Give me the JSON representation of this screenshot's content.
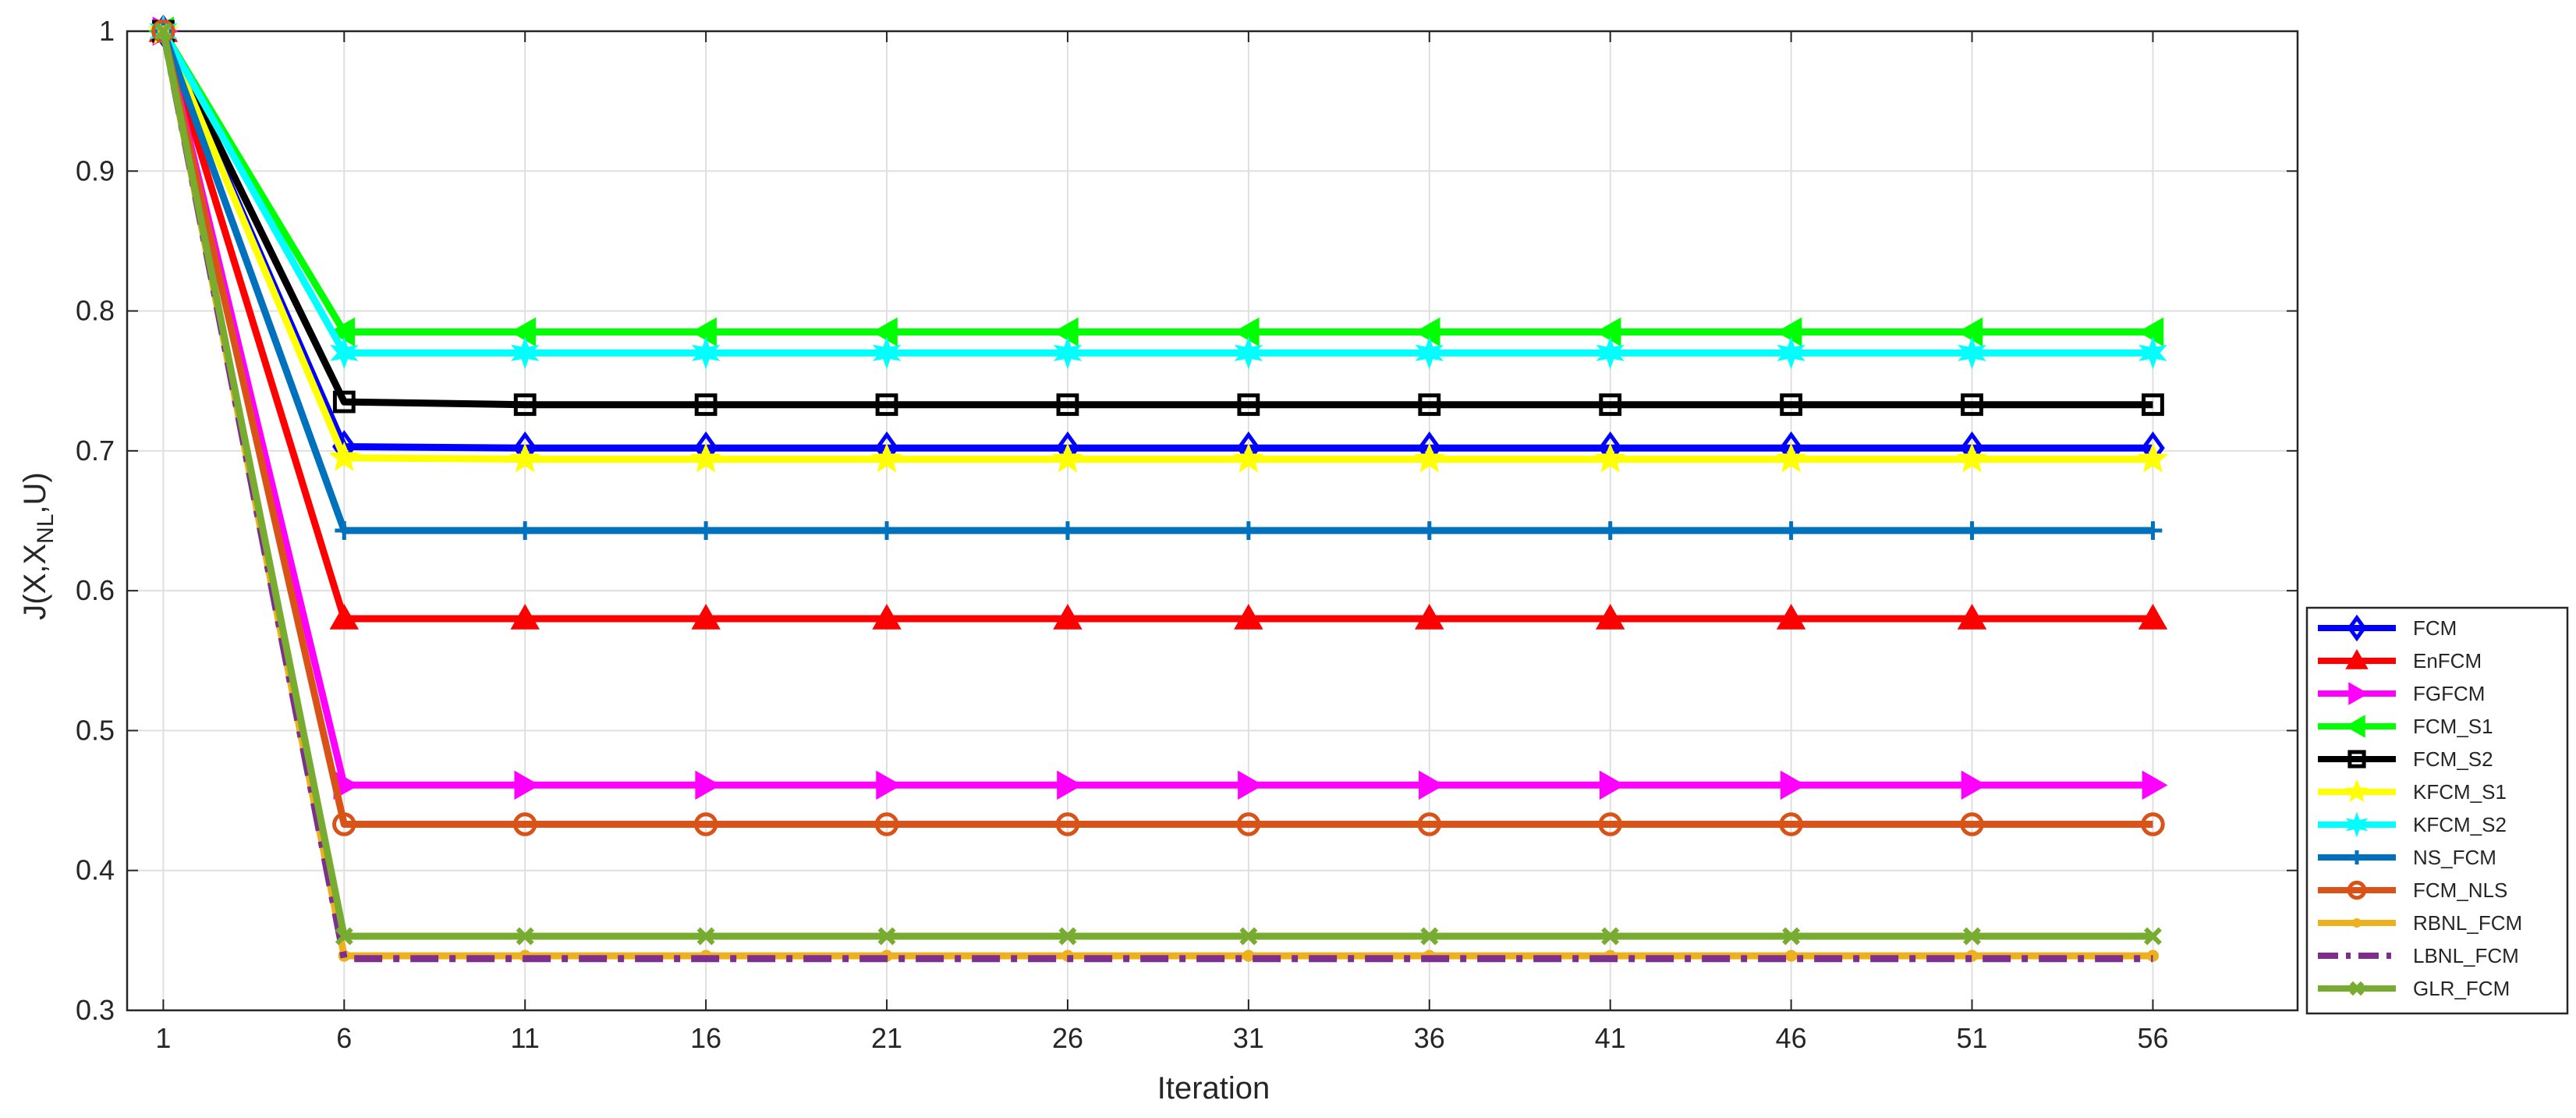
{
  "chart_data": {
    "type": "line",
    "title": "",
    "xlabel": "Iteration",
    "ylabel": {
      "main": "J(X,X",
      "sub": "NL",
      "tail": ",U)"
    },
    "xlim": [
      0,
      60
    ],
    "ylim": [
      0.3,
      1.0
    ],
    "grid": true,
    "legend_position": "right",
    "x": [
      1,
      6,
      11,
      16,
      21,
      26,
      31,
      36,
      41,
      46,
      51,
      56
    ],
    "xticks": [
      "1",
      "6",
      "11",
      "16",
      "21",
      "26",
      "31",
      "36",
      "41",
      "46",
      "51",
      "56"
    ],
    "yticks": [
      "0.3",
      "0.4",
      "0.5",
      "0.6",
      "0.7",
      "0.8",
      "0.9",
      "1"
    ],
    "series": [
      {
        "name": "FCM",
        "color": "#0000ff",
        "marker": "diamond",
        "dash": "solid",
        "values": [
          1.0,
          0.703,
          0.702,
          0.702,
          0.702,
          0.702,
          0.702,
          0.702,
          0.702,
          0.702,
          0.702,
          0.702
        ]
      },
      {
        "name": "EnFCM",
        "color": "#ff0000",
        "marker": "triangle-up",
        "dash": "solid",
        "values": [
          1.0,
          0.58,
          0.58,
          0.58,
          0.58,
          0.58,
          0.58,
          0.58,
          0.58,
          0.58,
          0.58,
          0.58
        ]
      },
      {
        "name": "FGFCM",
        "color": "#ff00ff",
        "marker": "triangle-right",
        "dash": "solid",
        "values": [
          1.0,
          0.461,
          0.461,
          0.461,
          0.461,
          0.461,
          0.461,
          0.461,
          0.461,
          0.461,
          0.461,
          0.461
        ]
      },
      {
        "name": "FCM_S1",
        "color": "#00ff00",
        "marker": "triangle-left",
        "dash": "solid",
        "values": [
          1.0,
          0.785,
          0.785,
          0.785,
          0.785,
          0.785,
          0.785,
          0.785,
          0.785,
          0.785,
          0.785,
          0.785
        ]
      },
      {
        "name": "FCM_S2",
        "color": "#000000",
        "marker": "square",
        "dash": "solid",
        "values": [
          1.0,
          0.735,
          0.733,
          0.733,
          0.733,
          0.733,
          0.733,
          0.733,
          0.733,
          0.733,
          0.733,
          0.733
        ]
      },
      {
        "name": "KFCM_S1",
        "color": "#ffff00",
        "marker": "star5",
        "dash": "solid",
        "values": [
          1.0,
          0.695,
          0.694,
          0.694,
          0.694,
          0.694,
          0.694,
          0.694,
          0.694,
          0.694,
          0.694,
          0.694
        ]
      },
      {
        "name": "KFCM_S2",
        "color": "#00ffff",
        "marker": "star6",
        "dash": "solid",
        "values": [
          1.0,
          0.77,
          0.77,
          0.77,
          0.77,
          0.77,
          0.77,
          0.77,
          0.77,
          0.77,
          0.77,
          0.77
        ]
      },
      {
        "name": "NS_FCM",
        "color": "#0072bd",
        "marker": "plus",
        "dash": "solid",
        "values": [
          1.0,
          0.643,
          0.643,
          0.643,
          0.643,
          0.643,
          0.643,
          0.643,
          0.643,
          0.643,
          0.643,
          0.643
        ]
      },
      {
        "name": "FCM_NLS",
        "color": "#d95319",
        "marker": "circle",
        "dash": "solid",
        "values": [
          1.0,
          0.433,
          0.433,
          0.433,
          0.433,
          0.433,
          0.433,
          0.433,
          0.433,
          0.433,
          0.433,
          0.433
        ]
      },
      {
        "name": "RBNL_FCM",
        "color": "#edb120",
        "marker": "dot",
        "dash": "solid",
        "values": [
          1.0,
          0.339,
          0.339,
          0.339,
          0.339,
          0.339,
          0.339,
          0.339,
          0.339,
          0.339,
          0.339,
          0.339
        ]
      },
      {
        "name": "LBNL_FCM",
        "color": "#7e2f8e",
        "marker": "none",
        "dash": "dashdot",
        "values": [
          1.0,
          0.337,
          0.337,
          0.337,
          0.337,
          0.337,
          0.337,
          0.337,
          0.337,
          0.337,
          0.337,
          0.337
        ]
      },
      {
        "name": "GLR_FCM",
        "color": "#77ac30",
        "marker": "x",
        "dash": "solid",
        "values": [
          1.0,
          0.353,
          0.353,
          0.353,
          0.353,
          0.353,
          0.353,
          0.353,
          0.353,
          0.353,
          0.353,
          0.353
        ]
      }
    ]
  }
}
